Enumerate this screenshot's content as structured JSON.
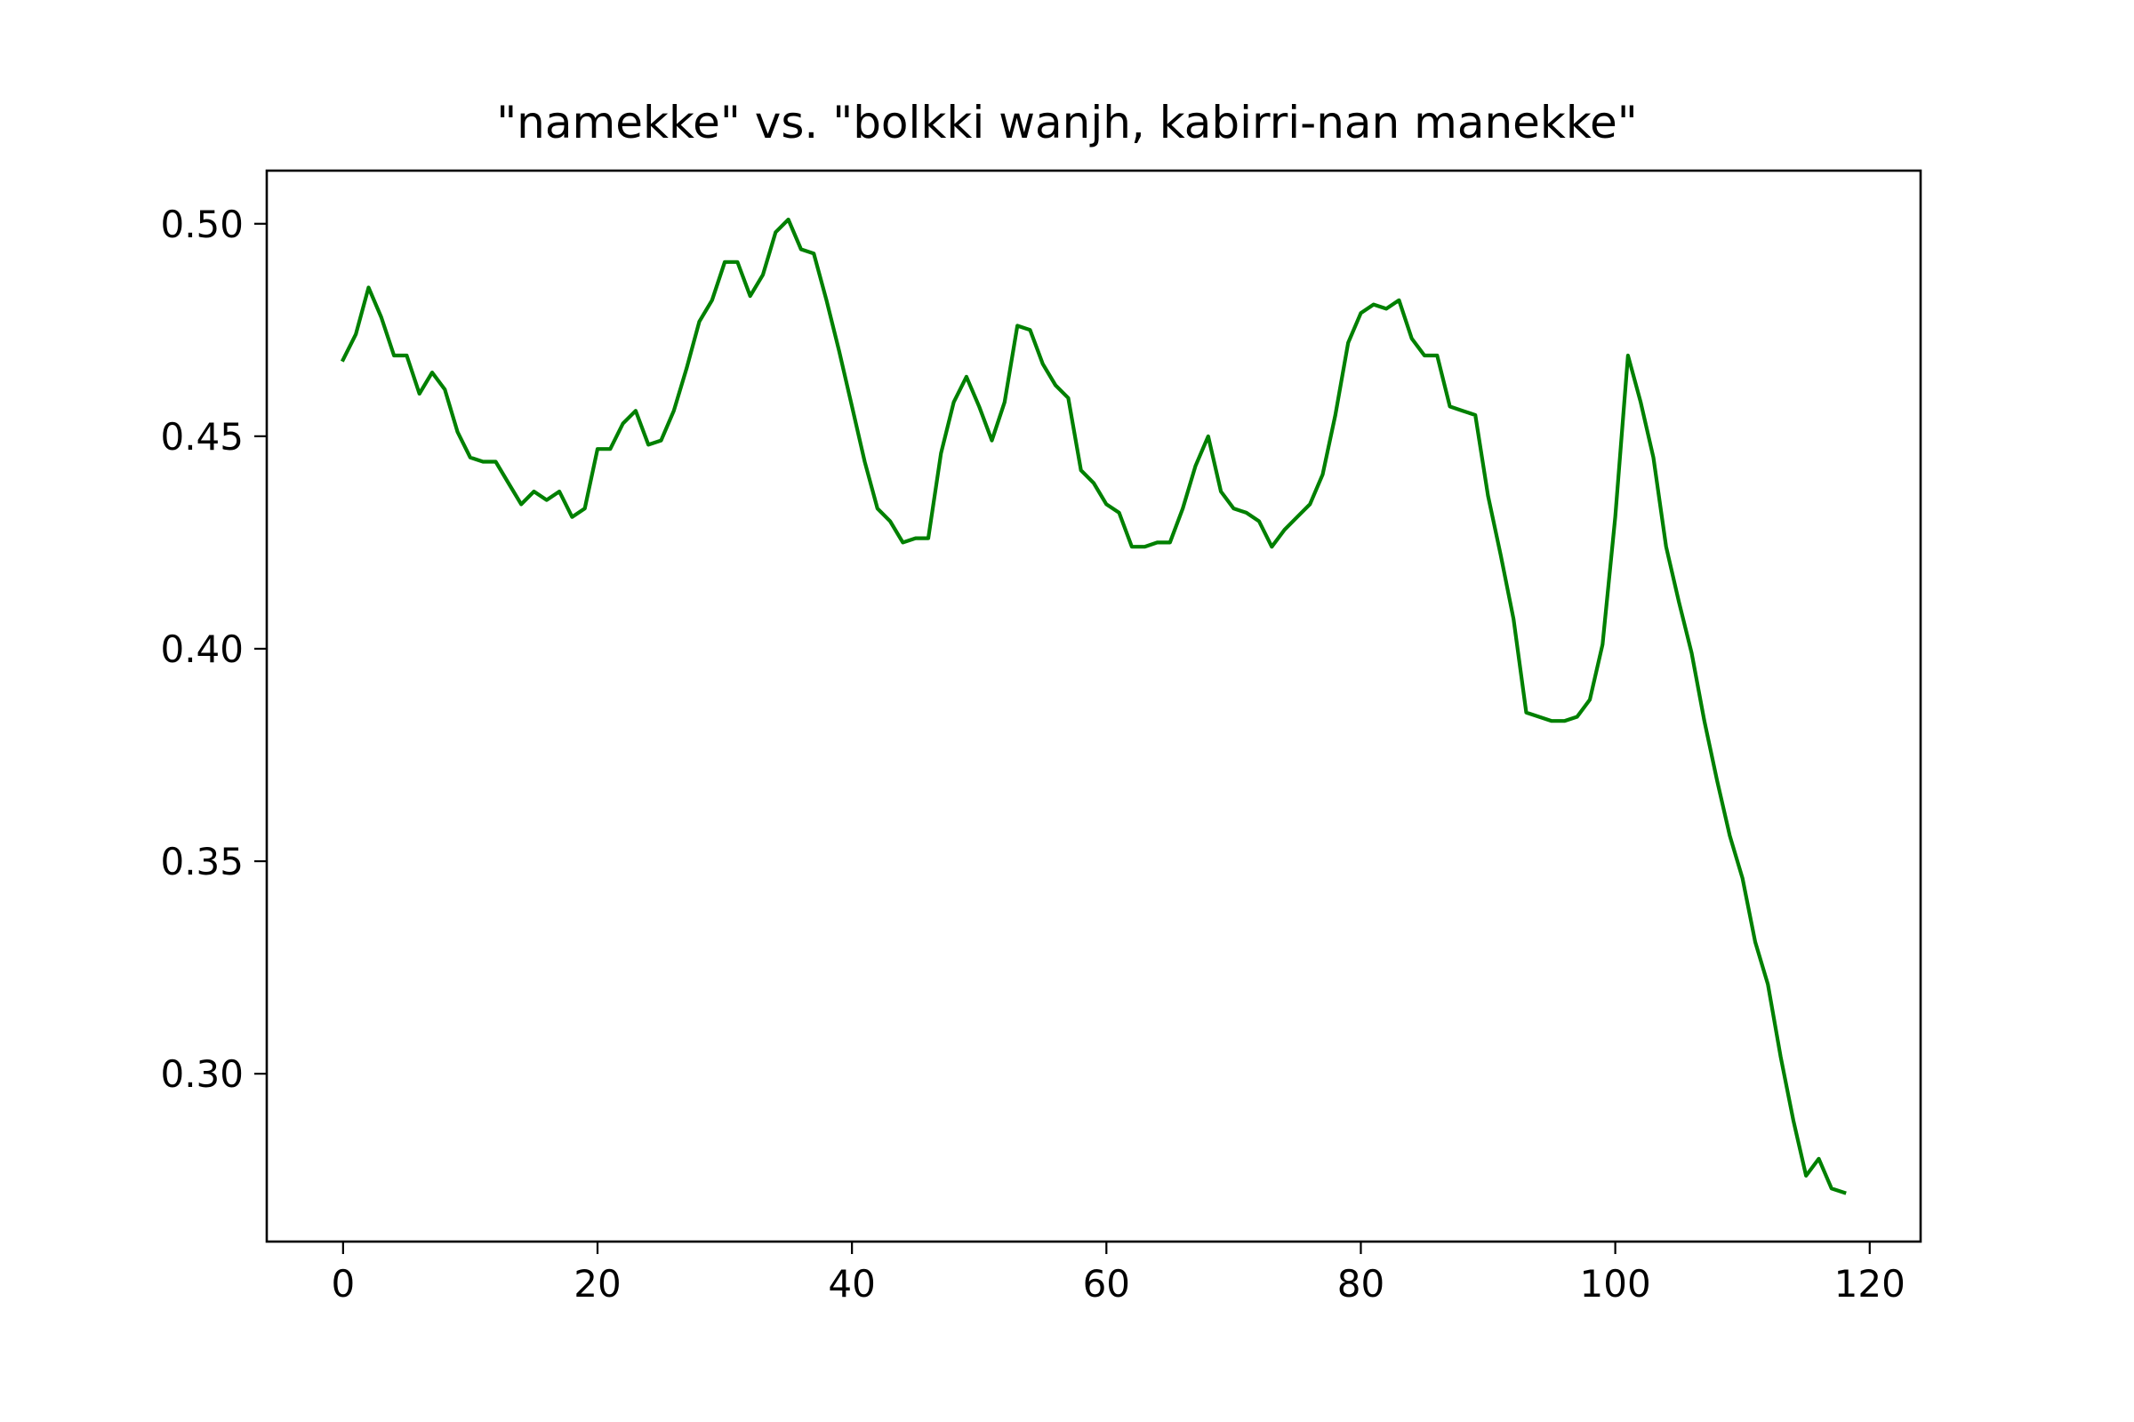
{
  "chart_data": {
    "type": "line",
    "title": "\"namekke\" vs. \"bolkki wanjh, kabirri-nan manekke\"",
    "xlabel": "",
    "ylabel": "",
    "xlim": [
      -6,
      124
    ],
    "ylim": [
      0.2605,
      0.5125
    ],
    "xticks": [
      0,
      20,
      40,
      60,
      80,
      100,
      120
    ],
    "xtick_labels": [
      "0",
      "20",
      "40",
      "60",
      "80",
      "100",
      "120"
    ],
    "yticks": [
      0.3,
      0.35,
      0.4,
      0.45,
      0.5
    ],
    "ytick_labels": [
      "0.30",
      "0.35",
      "0.40",
      "0.45",
      "0.50"
    ],
    "grid": false,
    "legend": "none",
    "series": [
      {
        "color": "#008000",
        "x": [
          0,
          1,
          2,
          3,
          4,
          5,
          6,
          7,
          8,
          9,
          10,
          11,
          12,
          13,
          14,
          15,
          16,
          17,
          18,
          19,
          20,
          21,
          22,
          23,
          24,
          25,
          26,
          27,
          28,
          29,
          30,
          31,
          32,
          33,
          34,
          35,
          36,
          37,
          38,
          39,
          40,
          41,
          42,
          43,
          44,
          45,
          46,
          47,
          48,
          49,
          50,
          51,
          52,
          53,
          54,
          55,
          56,
          57,
          58,
          59,
          60,
          61,
          62,
          63,
          64,
          65,
          66,
          67,
          68,
          69,
          70,
          71,
          72,
          73,
          74,
          75,
          76,
          77,
          78,
          79,
          80,
          81,
          82,
          83,
          84,
          85,
          86,
          87,
          88,
          89,
          90,
          91,
          92,
          93,
          94,
          95,
          96,
          97,
          98,
          99,
          100,
          101,
          102,
          103,
          104,
          105,
          106,
          107,
          108,
          109,
          110,
          111,
          112,
          113,
          114,
          115,
          116,
          117,
          118
        ],
        "y": [
          0.468,
          0.474,
          0.485,
          0.478,
          0.469,
          0.469,
          0.46,
          0.465,
          0.461,
          0.451,
          0.445,
          0.444,
          0.444,
          0.439,
          0.434,
          0.437,
          0.435,
          0.437,
          0.431,
          0.433,
          0.447,
          0.447,
          0.453,
          0.456,
          0.448,
          0.449,
          0.456,
          0.466,
          0.477,
          0.482,
          0.491,
          0.491,
          0.483,
          0.488,
          0.498,
          0.501,
          0.494,
          0.493,
          0.482,
          0.47,
          0.457,
          0.444,
          0.433,
          0.43,
          0.425,
          0.426,
          0.426,
          0.446,
          0.458,
          0.464,
          0.457,
          0.449,
          0.458,
          0.476,
          0.475,
          0.467,
          0.462,
          0.459,
          0.442,
          0.439,
          0.434,
          0.432,
          0.424,
          0.424,
          0.425,
          0.425,
          0.433,
          0.443,
          0.45,
          0.437,
          0.433,
          0.432,
          0.43,
          0.424,
          0.428,
          0.431,
          0.434,
          0.441,
          0.455,
          0.472,
          0.479,
          0.481,
          0.48,
          0.482,
          0.473,
          0.469,
          0.469,
          0.457,
          0.456,
          0.455,
          0.436,
          0.422,
          0.407,
          0.385,
          0.384,
          0.383,
          0.383,
          0.384,
          0.388,
          0.401,
          0.431,
          0.469,
          0.458,
          0.445,
          0.424,
          0.411,
          0.399,
          0.383,
          0.369,
          0.356,
          0.346,
          0.331,
          0.321,
          0.304,
          0.289,
          0.276,
          0.28,
          0.273,
          0.272
        ]
      }
    ]
  }
}
